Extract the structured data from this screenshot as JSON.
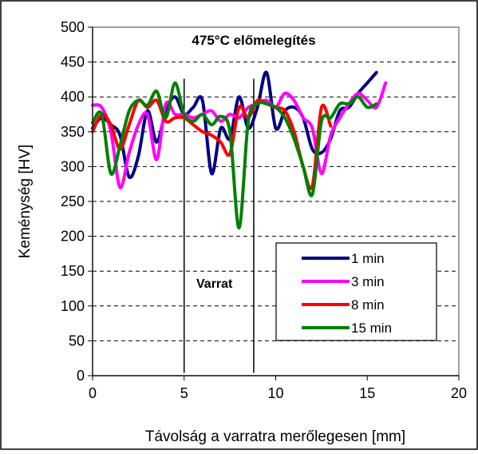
{
  "chart_data": {
    "type": "line",
    "title": "475°C előmelegítés",
    "xlabel": "Távolság a varratra merőlegesen [mm]",
    "ylabel": "Keménység [HV]",
    "xlim": [
      0,
      20
    ],
    "ylim": [
      0,
      500
    ],
    "x_ticks": [
      "0",
      "5",
      "10",
      "15",
      "20"
    ],
    "y_ticks": [
      "0",
      "50",
      "100",
      "150",
      "200",
      "250",
      "300",
      "350",
      "400",
      "450",
      "500"
    ],
    "grid": "horizontal dashed",
    "legend_position": "bottom-right",
    "annotation": "Varrat",
    "weld_lines_x": [
      5,
      8.8
    ],
    "series": [
      {
        "name": "1 min",
        "color": "#000080",
        "x": [
          0,
          0.5,
          1,
          1.5,
          2,
          2.5,
          3,
          3.5,
          4,
          4.5,
          5,
          5.5,
          6,
          6.5,
          7,
          7.5,
          8,
          8.5,
          9,
          9.5,
          10,
          10.5,
          11,
          11.5,
          12,
          12.5,
          13,
          13.5,
          14,
          14.5,
          15,
          15.5
        ],
        "values": [
          355,
          370,
          360,
          345,
          285,
          315,
          380,
          335,
          380,
          400,
          375,
          385,
          395,
          290,
          355,
          340,
          400,
          355,
          385,
          435,
          355,
          380,
          385,
          370,
          325,
          320,
          340,
          380,
          385,
          405,
          420,
          435
        ]
      },
      {
        "name": "3 min",
        "color": "#ff00ff",
        "x": [
          0,
          0.5,
          1,
          1.5,
          2,
          2.5,
          3,
          3.5,
          4,
          4.5,
          5,
          5.5,
          6,
          6.5,
          7,
          7.5,
          8,
          8.5,
          9,
          9.5,
          10,
          10.5,
          11,
          11.5,
          12,
          12.5,
          13,
          13.5,
          14,
          14.5,
          15,
          15.5,
          16
        ],
        "values": [
          388,
          385,
          350,
          270,
          320,
          360,
          375,
          310,
          390,
          375,
          375,
          370,
          375,
          380,
          365,
          375,
          370,
          385,
          390,
          395,
          385,
          405,
          395,
          370,
          355,
          290,
          345,
          370,
          390,
          405,
          395,
          385,
          420
        ]
      },
      {
        "name": "8 min",
        "color": "#ff0000",
        "x": [
          0,
          0.5,
          1,
          1.5,
          2,
          2.5,
          3,
          3.5,
          4,
          4.5,
          5,
          5.5,
          6,
          6.5,
          7,
          7.5,
          8,
          8.5,
          9,
          9.5,
          10,
          10.5,
          11,
          11.5,
          12,
          12.5,
          13
        ],
        "values": [
          350,
          375,
          360,
          325,
          360,
          395,
          385,
          395,
          365,
          370,
          370,
          360,
          350,
          345,
          335,
          318,
          385,
          370,
          395,
          390,
          385,
          380,
          350,
          300,
          272,
          385,
          358
        ]
      },
      {
        "name": "15 min",
        "color": "#008000",
        "x": [
          0,
          0.5,
          1,
          1.5,
          2,
          2.5,
          3,
          3.5,
          4,
          4.5,
          5,
          5.5,
          6,
          6.5,
          7,
          7.5,
          8,
          8.5,
          9,
          9.5,
          10,
          10.5,
          11,
          11.5,
          12,
          12.5,
          13,
          13.5,
          14,
          14.5,
          15,
          15.5
        ],
        "values": [
          363,
          375,
          290,
          330,
          380,
          395,
          388,
          408,
          370,
          420,
          375,
          365,
          375,
          360,
          372,
          350,
          212,
          365,
          390,
          390,
          385,
          370,
          340,
          300,
          260,
          365,
          370,
          390,
          390,
          400,
          385,
          390
        ]
      }
    ]
  }
}
